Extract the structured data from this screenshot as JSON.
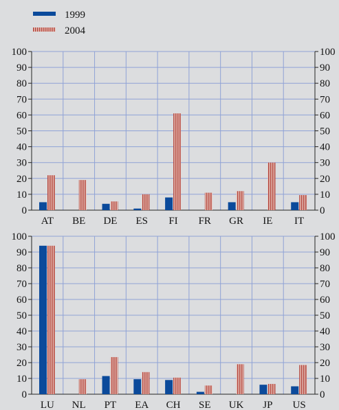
{
  "colors": {
    "background": "#dcdddf",
    "grid": "#8fa2d6",
    "axis": "#222222",
    "bar_1999": "#0b4a9b",
    "bar_2004_fill": "#e8c9c1",
    "bar_2004_stripe": "#b5473e"
  },
  "legend": {
    "position": "top-left",
    "items": [
      {
        "label": "1999",
        "style": "solid"
      },
      {
        "label": "2004",
        "style": "striped"
      }
    ]
  },
  "chart_data": [
    {
      "type": "bar",
      "categories": [
        "AT",
        "BE",
        "DE",
        "ES",
        "FI",
        "FR",
        "GR",
        "IE",
        "IT"
      ],
      "series": [
        {
          "name": "1999",
          "values": [
            5,
            0,
            4,
            1,
            8,
            0,
            5,
            0,
            5
          ]
        },
        {
          "name": "2004",
          "values": [
            22,
            19,
            5.5,
            10,
            61,
            11,
            12,
            30,
            9.5
          ]
        }
      ],
      "ylim": [
        0,
        100
      ],
      "yticks": [
        0,
        10,
        20,
        30,
        40,
        50,
        60,
        70,
        80,
        90,
        100
      ],
      "ytick_labels": [
        "0",
        "10",
        "20",
        "30",
        "40",
        "50",
        "60",
        "70",
        "80",
        "90",
        "100"
      ],
      "grid": true,
      "dual_y_axis": true
    },
    {
      "type": "bar",
      "categories": [
        "LU",
        "NL",
        "PT",
        "EA",
        "CH",
        "SE",
        "UK",
        "JP",
        "US"
      ],
      "series": [
        {
          "name": "1999",
          "values": [
            94,
            0,
            11.5,
            9.5,
            9,
            1.5,
            0,
            6,
            5
          ]
        },
        {
          "name": "2004",
          "values": [
            94,
            9.5,
            23.5,
            14,
            10.5,
            5.5,
            19,
            6.5,
            18.5
          ]
        }
      ],
      "ylim": [
        0,
        100
      ],
      "yticks": [
        0,
        10,
        20,
        30,
        40,
        50,
        60,
        70,
        80,
        90,
        100
      ],
      "ytick_labels": [
        "0",
        "10",
        "20",
        "30",
        "40",
        "50",
        "60",
        "70",
        "80",
        "90",
        "100"
      ],
      "grid": true,
      "dual_y_axis": true
    }
  ]
}
